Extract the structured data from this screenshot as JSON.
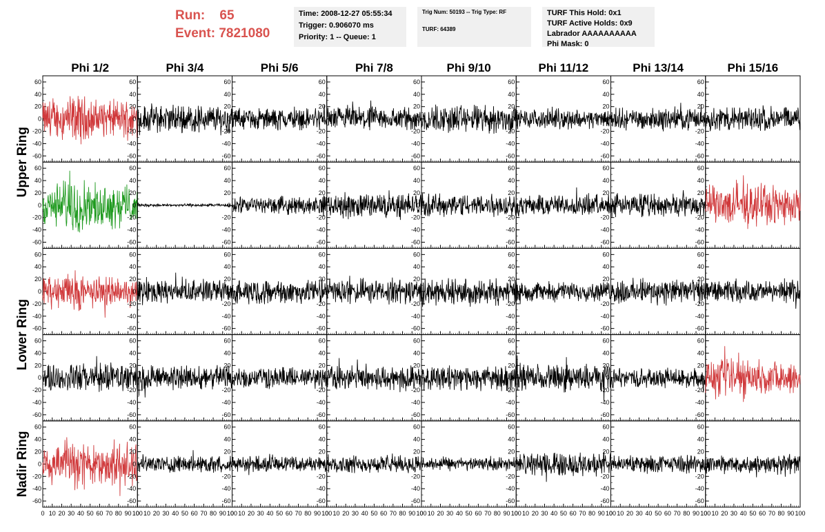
{
  "run_info": {
    "run_label": "Run:",
    "run_value": "65",
    "event_label": "Event:",
    "event_value": "7821080"
  },
  "time_box": {
    "time": "Time: 2008-12-27 05:55:34",
    "trigger": "Trigger: 0.906070 ms",
    "priority": "Priority: 1 -- Queue: 1"
  },
  "trig_box": {
    "trig": "Trig Num: 50193 -- Trig Type: RF",
    "turf": "TURF: 64389"
  },
  "turf_box": {
    "this_hold": "TURF This Hold: 0x1",
    "active_holds": "TURF Active Holds: 0x9",
    "labrador": "Labrador AAAAAAAAAA",
    "phi_mask": "Phi Mask: 0"
  },
  "colors": {
    "normal": "#000000",
    "triggered": "#d0393b",
    "highlight": "#1f9a1f",
    "info_bg": "#f0f0f0",
    "run_text": "#d9534f"
  },
  "chart_data": {
    "type": "line",
    "columns": [
      "Phi 1/2",
      "Phi 3/4",
      "Phi 5/6",
      "Phi 7/8",
      "Phi 9/10",
      "Phi 11/12",
      "Phi 13/14",
      "Phi 15/16"
    ],
    "ring_labels": [
      "Upper Ring",
      "Lower Ring",
      "Nadir Ring"
    ],
    "ring_spans": [
      [
        0,
        1
      ],
      [
        2,
        3
      ],
      [
        4,
        4
      ]
    ],
    "xlim": [
      0,
      100
    ],
    "ylim": [
      -70,
      70
    ],
    "xticks": [
      0,
      10,
      20,
      30,
      40,
      50,
      60,
      70,
      80,
      90,
      100
    ],
    "xtick_labels_shown": [
      "0",
      "10",
      "20",
      "30",
      "40",
      "50",
      "60",
      "70",
      "80",
      "90",
      "100"
    ],
    "yticks": [
      -60,
      -40,
      -20,
      0,
      20,
      40,
      60
    ],
    "ytick_labels_shown": [
      "-60",
      "-40",
      "-20",
      "0",
      "20",
      "40",
      "60"
    ],
    "panels": [
      [
        {
          "color": "triggered",
          "amplitude": 40
        },
        {
          "color": "normal",
          "amplitude": 30
        },
        {
          "color": "normal",
          "amplitude": 22
        },
        {
          "color": "normal",
          "amplitude": 25
        },
        {
          "color": "normal",
          "amplitude": 30
        },
        {
          "color": "normal",
          "amplitude": 20
        },
        {
          "color": "normal",
          "amplitude": 22
        },
        {
          "color": "normal",
          "amplitude": 26
        }
      ],
      [
        {
          "color": "highlight",
          "amplitude": 45
        },
        {
          "color": "normal",
          "amplitude": 3
        },
        {
          "color": "normal",
          "amplitude": 18
        },
        {
          "color": "normal",
          "amplitude": 26
        },
        {
          "color": "normal",
          "amplitude": 24
        },
        {
          "color": "normal",
          "amplitude": 22
        },
        {
          "color": "normal",
          "amplitude": 24
        },
        {
          "color": "triggered",
          "amplitude": 40
        }
      ],
      [
        {
          "color": "triggered",
          "amplitude": 32
        },
        {
          "color": "normal",
          "amplitude": 24
        },
        {
          "color": "normal",
          "amplitude": 25
        },
        {
          "color": "normal",
          "amplitude": 26
        },
        {
          "color": "normal",
          "amplitude": 28
        },
        {
          "color": "normal",
          "amplitude": 20
        },
        {
          "color": "normal",
          "amplitude": 26
        },
        {
          "color": "normal",
          "amplitude": 22
        }
      ],
      [
        {
          "color": "normal",
          "amplitude": 30
        },
        {
          "color": "normal",
          "amplitude": 26
        },
        {
          "color": "normal",
          "amplitude": 22
        },
        {
          "color": "normal",
          "amplitude": 26
        },
        {
          "color": "normal",
          "amplitude": 26
        },
        {
          "color": "normal",
          "amplitude": 28
        },
        {
          "color": "normal",
          "amplitude": 20
        },
        {
          "color": "triggered",
          "amplitude": 35
        }
      ],
      [
        {
          "color": "triggered",
          "amplitude": 45
        },
        {
          "color": "normal",
          "amplitude": 18
        },
        {
          "color": "normal",
          "amplitude": 16
        },
        {
          "color": "normal",
          "amplitude": 18
        },
        {
          "color": "normal",
          "amplitude": 14
        },
        {
          "color": "normal",
          "amplitude": 24
        },
        {
          "color": "normal",
          "amplitude": 18
        },
        {
          "color": "normal",
          "amplitude": 20
        }
      ]
    ]
  }
}
